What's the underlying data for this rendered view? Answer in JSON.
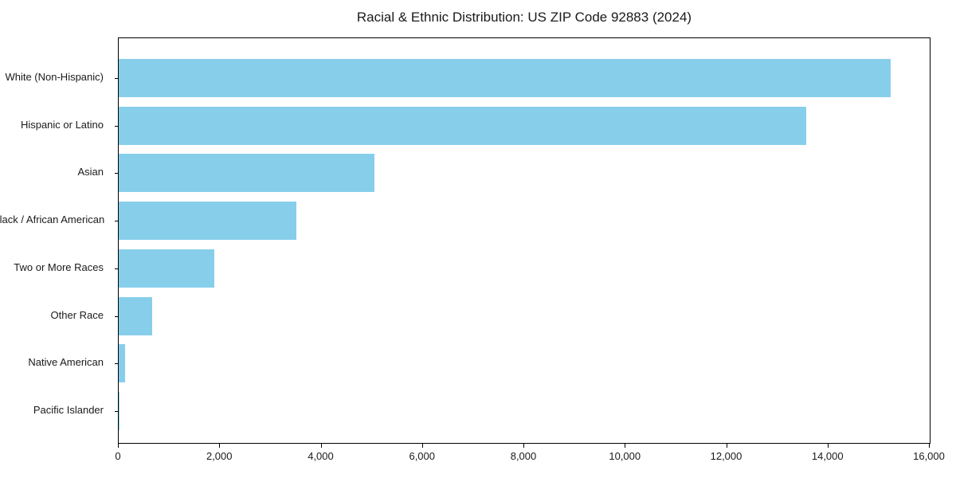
{
  "chart_data": {
    "type": "bar",
    "orientation": "horizontal",
    "title": "Racial & Ethnic Distribution: US ZIP Code 92883 (2024)",
    "categories": [
      "White (Non-Hispanic)",
      "Hispanic or Latino",
      "Asian",
      "Black / African American",
      "Two or More Races",
      "Other Race",
      "Native American",
      "Pacific Islander"
    ],
    "values": [
      15230,
      13570,
      5040,
      3500,
      1880,
      660,
      125,
      15
    ],
    "xlabel": "",
    "ylabel": "",
    "xlim": [
      0,
      16000
    ],
    "x_ticks": [
      0,
      2000,
      4000,
      6000,
      8000,
      10000,
      12000,
      14000,
      16000
    ],
    "x_tick_labels": [
      "0",
      "2,000",
      "4,000",
      "6,000",
      "8,000",
      "10,000",
      "12,000",
      "14,000",
      "16,000"
    ],
    "bar_color": "#87CEEB",
    "frame_color": "#000000",
    "grid": false,
    "legend": "none"
  }
}
